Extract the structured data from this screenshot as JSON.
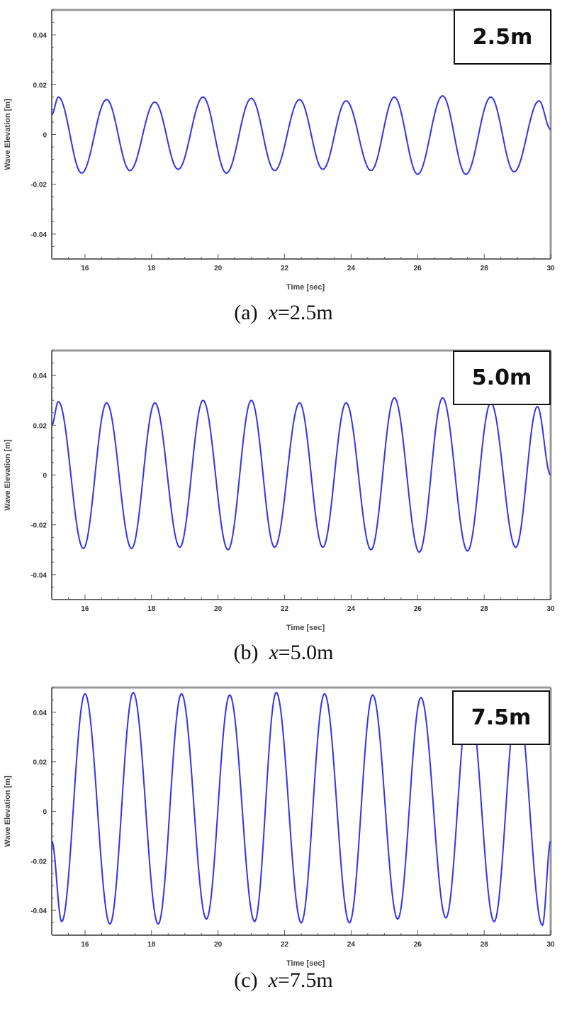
{
  "figure": {
    "panels": [
      {
        "id": "a",
        "badge": "2.5m",
        "caption_prefix": "(a)",
        "caption_var": "x",
        "caption_value": "=2.5m"
      },
      {
        "id": "b",
        "badge": "5.0m",
        "caption_prefix": "(b)",
        "caption_var": "x",
        "caption_value": "=5.0m"
      },
      {
        "id": "c",
        "badge": "7.5m",
        "caption_prefix": "(c)",
        "caption_var": "x",
        "caption_value": "=7.5m"
      }
    ]
  },
  "chart_data": [
    {
      "type": "line",
      "title": "x=2.5m",
      "xlabel": "Time [sec]",
      "ylabel": "Wave Elevation [m]",
      "xlim": [
        15,
        30
      ],
      "ylim": [
        -0.05,
        0.05
      ],
      "xticks": [
        "16",
        "18",
        "20",
        "22",
        "24",
        "26",
        "28",
        "30"
      ],
      "yticks": [
        "0.04",
        "0.02",
        "0",
        "-0.02",
        "-0.04"
      ],
      "grid": false,
      "line_color": "#3333ee",
      "series": [
        {
          "name": "Wave elevation at x=2.5m",
          "period_sec": 1.45,
          "peaks": [
            {
              "t": 15.2,
              "y": 0.015
            },
            {
              "t": 16.65,
              "y": 0.014
            },
            {
              "t": 18.1,
              "y": 0.013
            },
            {
              "t": 19.55,
              "y": 0.015
            },
            {
              "t": 21.0,
              "y": 0.0145
            },
            {
              "t": 22.45,
              "y": 0.014
            },
            {
              "t": 23.85,
              "y": 0.0135
            },
            {
              "t": 25.3,
              "y": 0.015
            },
            {
              "t": 26.75,
              "y": 0.0155
            },
            {
              "t": 28.2,
              "y": 0.015
            },
            {
              "t": 29.65,
              "y": 0.0135
            }
          ],
          "troughs": [
            {
              "t": 15.9,
              "y": -0.0155
            },
            {
              "t": 17.35,
              "y": -0.0145
            },
            {
              "t": 18.8,
              "y": -0.014
            },
            {
              "t": 20.25,
              "y": -0.0155
            },
            {
              "t": 21.7,
              "y": -0.0145
            },
            {
              "t": 23.15,
              "y": -0.014
            },
            {
              "t": 24.6,
              "y": -0.0145
            },
            {
              "t": 26.0,
              "y": -0.016
            },
            {
              "t": 27.45,
              "y": -0.016
            },
            {
              "t": 28.9,
              "y": -0.015
            }
          ],
          "start": {
            "t": 15.0,
            "y": 0.008
          },
          "end": {
            "t": 30.0,
            "y": 0.002
          }
        }
      ]
    },
    {
      "type": "line",
      "title": "x=5.0m",
      "xlabel": "Time [sec]",
      "ylabel": "Wave Elevation [m]",
      "xlim": [
        15,
        30
      ],
      "ylim": [
        -0.05,
        0.05
      ],
      "xticks": [
        "16",
        "18",
        "20",
        "22",
        "24",
        "26",
        "28",
        "30"
      ],
      "yticks": [
        "0.04",
        "0.02",
        "0",
        "-0.02",
        "-0.04"
      ],
      "grid": false,
      "line_color": "#3333ee",
      "series": [
        {
          "name": "Wave elevation at x=5.0m",
          "period_sec": 1.45,
          "peaks": [
            {
              "t": 15.2,
              "y": 0.0295
            },
            {
              "t": 16.65,
              "y": 0.029
            },
            {
              "t": 18.1,
              "y": 0.029
            },
            {
              "t": 19.55,
              "y": 0.03
            },
            {
              "t": 21.0,
              "y": 0.03
            },
            {
              "t": 22.45,
              "y": 0.029
            },
            {
              "t": 23.85,
              "y": 0.029
            },
            {
              "t": 25.3,
              "y": 0.031
            },
            {
              "t": 26.75,
              "y": 0.031
            },
            {
              "t": 28.2,
              "y": 0.029
            },
            {
              "t": 29.6,
              "y": 0.0275
            }
          ],
          "troughs": [
            {
              "t": 15.95,
              "y": -0.0295
            },
            {
              "t": 17.4,
              "y": -0.0295
            },
            {
              "t": 18.85,
              "y": -0.029
            },
            {
              "t": 20.3,
              "y": -0.03
            },
            {
              "t": 21.7,
              "y": -0.029
            },
            {
              "t": 23.15,
              "y": -0.029
            },
            {
              "t": 24.6,
              "y": -0.03
            },
            {
              "t": 26.05,
              "y": -0.031
            },
            {
              "t": 27.5,
              "y": -0.0305
            },
            {
              "t": 28.95,
              "y": -0.029
            }
          ],
          "start": {
            "t": 15.0,
            "y": 0.02
          },
          "end": {
            "t": 30.0,
            "y": 0.0
          }
        }
      ]
    },
    {
      "type": "line",
      "title": "x=7.5m",
      "xlabel": "Time [sec]",
      "ylabel": "Wave Elevation [m]",
      "xlim": [
        15,
        30
      ],
      "ylim": [
        -0.05,
        0.05
      ],
      "xticks": [
        "16",
        "18",
        "20",
        "22",
        "24",
        "26",
        "28",
        "30"
      ],
      "yticks": [
        "0.04",
        "0.02",
        "0",
        "-0.02",
        "-0.04"
      ],
      "grid": false,
      "line_color": "#3333ee",
      "series": [
        {
          "name": "Wave elevation at x=7.5m",
          "period_sec": 1.45,
          "peaks": [
            {
              "t": 16.0,
              "y": 0.0475
            },
            {
              "t": 17.45,
              "y": 0.048
            },
            {
              "t": 18.9,
              "y": 0.0475
            },
            {
              "t": 20.35,
              "y": 0.047
            },
            {
              "t": 21.75,
              "y": 0.048
            },
            {
              "t": 23.2,
              "y": 0.0475
            },
            {
              "t": 24.65,
              "y": 0.047
            },
            {
              "t": 26.1,
              "y": 0.046
            },
            {
              "t": 27.55,
              "y": 0.046
            },
            {
              "t": 29.0,
              "y": 0.046
            }
          ],
          "troughs": [
            {
              "t": 15.3,
              "y": -0.0445
            },
            {
              "t": 16.75,
              "y": -0.0455
            },
            {
              "t": 18.2,
              "y": -0.0455
            },
            {
              "t": 19.65,
              "y": -0.0435
            },
            {
              "t": 21.1,
              "y": -0.0445
            },
            {
              "t": 22.5,
              "y": -0.045
            },
            {
              "t": 23.95,
              "y": -0.045
            },
            {
              "t": 25.4,
              "y": -0.0435
            },
            {
              "t": 26.85,
              "y": -0.043
            },
            {
              "t": 28.3,
              "y": -0.0445
            },
            {
              "t": 29.75,
              "y": -0.046
            }
          ],
          "start": {
            "t": 15.0,
            "y": -0.012
          },
          "end": {
            "t": 30.0,
            "y": -0.012
          }
        }
      ]
    }
  ]
}
